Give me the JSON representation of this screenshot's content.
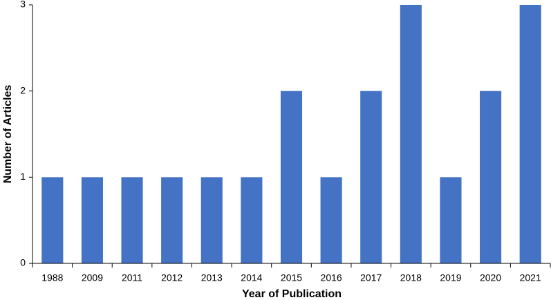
{
  "chart_data": {
    "type": "bar",
    "title": null,
    "x_label": "Year of Publication",
    "y_label": "Number of Articles",
    "categories": [
      "1988",
      "2009",
      "2011",
      "2012",
      "2013",
      "2014",
      "2015",
      "2016",
      "2017",
      "2018",
      "2019",
      "2020",
      "2021"
    ],
    "values": [
      1,
      1,
      1,
      1,
      1,
      1,
      2,
      1,
      2,
      3,
      1,
      2,
      3
    ],
    "color": "#4472c4",
    "ylim": [
      0,
      3
    ],
    "yticks": [
      0,
      1,
      2,
      3
    ],
    "grid": false
  }
}
